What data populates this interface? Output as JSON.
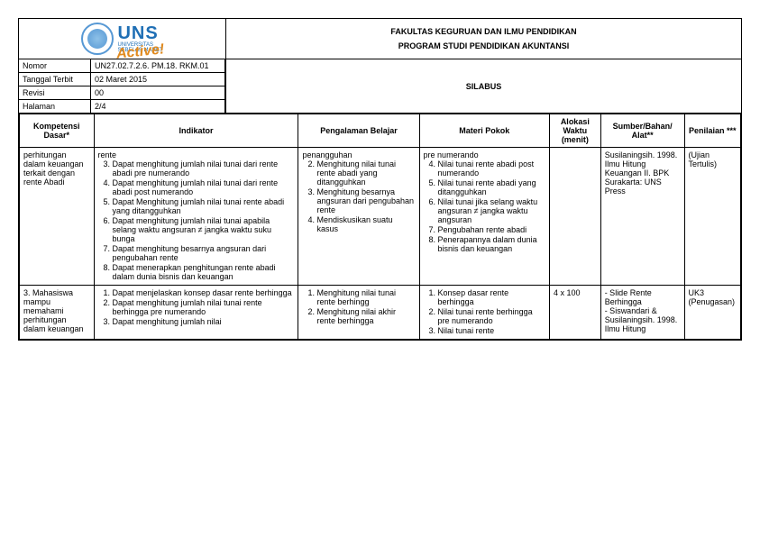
{
  "header": {
    "faculty": "FAKULTAS KEGURUAN DAN ILMU PENDIDIKAN",
    "program": "PROGRAM STUDI PENDIDIKAN AKUNTANSI",
    "logo_main": "UNS",
    "logo_sub1": "UNIVERSITAS",
    "logo_sub2": "SEBELAS MARET",
    "logo_active": "Active!"
  },
  "info": {
    "nomor_label": "Nomor",
    "nomor_val": "UN27.02.7.2.6. PM.18. RKM.01",
    "tanggal_label": "Tanggal Terbit",
    "tanggal_val": "02 Maret 2015",
    "revisi_label": "Revisi",
    "revisi_val": "00",
    "halaman_label": "Halaman",
    "halaman_val": "2/4",
    "silabus": "SILABUS"
  },
  "cols": {
    "kd": "Kompetensi Dasar*",
    "ind": "Indikator",
    "peng": "Pengalaman Belajar",
    "mat": "Materi Pokok",
    "alok": "Alokasi Waktu (menit)",
    "sum": "Sumber/Bahan/ Alat**",
    "pen": "Penilaian ***"
  },
  "row1": {
    "kd": "perhitungan dalam keuangan terkait dengan rente Abadi",
    "ind_pre": "rente",
    "ind": [
      "Dapat menghitung jumlah nilai tunai dari rente abadi pre numerando",
      "Dapat menghitung jumlah nilai tunai dari rente abadi post numerando",
      "Dapat Menghitung jumlah nilai tunai rente abadi yang ditangguhkan",
      "Dapat menghitung jumlah nilai tunai apabila selang waktu angsuran ≠ jangka waktu suku bunga",
      "Dapat menghitung besarnya angsuran dari pengubahan rente",
      "Dapat menerapkan penghitungan rente abadi dalam dunia bisnis dan keuangan"
    ],
    "peng_pre": "penangguhan",
    "peng": [
      "Menghitung nilai tunai rente abadi yang ditangguhkan",
      "Menghitung besarnya angsuran dari pengubahan rente",
      "Mendiskusikan suatu kasus"
    ],
    "mat_pre": "pre numerando",
    "mat": [
      "Nilai tunai rente abadi post numerando",
      "Nilai tunai rente abadi yang ditangguhkan",
      "Nilai tunai jika selang waktu angsuran ≠ jangka waktu angsuran",
      "Pengubahan rente abadi",
      "Penerapannya dalam dunia bisnis dan keuangan"
    ],
    "alok": "",
    "sum": "Susilaningsih. 1998. Ilmu Hitung Keuangan II. BPK Surakarta: UNS Press",
    "pen": "(Ujian Tertulis)"
  },
  "row2": {
    "kd_num": "3.",
    "kd": "Mahasiswa mampu memahami perhitungan dalam keuangan",
    "ind": [
      "Dapat menjelaskan konsep dasar rente berhingga",
      "Dapat menghitung jumlah nilai tunai rente berhingga pre numerando",
      "Dapat menghitung jumlah nilai"
    ],
    "peng": [
      "Menghitung nilai tunai rente berhingg",
      "Menghitung nilai akhir rente berhingga"
    ],
    "mat": [
      "Konsep dasar rente berhingga",
      "Nilai tunai rente berhingga pre numerando",
      "Nilai tunai rente"
    ],
    "alok": "4 x 100",
    "sum": "- Slide Rente Berhingga\n- Siswandari & Susilaningsih. 1998. Ilmu Hitung",
    "pen": "UK3 (Penugasan)"
  }
}
